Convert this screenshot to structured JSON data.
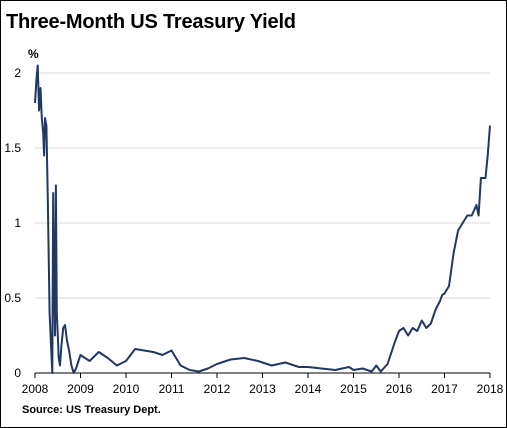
{
  "chart_data": {
    "type": "line",
    "title": "Three-Month US Treasury Yield",
    "ylabel": "%",
    "source": "Source: US Treasury Dept.",
    "x_ticks": [
      "2008",
      "2009",
      "2010",
      "2011",
      "2012",
      "2013",
      "2014",
      "2015",
      "2016",
      "2017",
      "2018"
    ],
    "y_ticks": [
      "0",
      "0.5",
      "1",
      "1.5",
      "2"
    ],
    "xlim": [
      2008.0,
      2018.0
    ],
    "ylim": [
      0,
      2.0
    ],
    "grid": "horizontal",
    "line_color": "#1f3864",
    "series": [
      {
        "x": [
          2008.0,
          2008.03,
          2008.06,
          2008.09,
          2008.12,
          2008.15,
          2008.18,
          2008.2,
          2008.22,
          2008.25,
          2008.28,
          2008.32,
          2008.35,
          2008.38,
          2008.4,
          2008.42,
          2008.44,
          2008.46,
          2008.48,
          2008.5,
          2008.52,
          2008.55,
          2008.58,
          2008.62,
          2008.66,
          2008.7,
          2008.75,
          2008.8,
          2008.85,
          2008.9,
          2009.0,
          2009.2,
          2009.4,
          2009.6,
          2009.8,
          2010.0,
          2010.2,
          2010.4,
          2010.6,
          2010.8,
          2011.0,
          2011.2,
          2011.4,
          2011.6,
          2011.8,
          2012.0,
          2012.3,
          2012.6,
          2012.9,
          2013.2,
          2013.5,
          2013.8,
          2014.0,
          2014.3,
          2014.6,
          2014.9,
          2015.0,
          2015.2,
          2015.4,
          2015.5,
          2015.6,
          2015.75,
          2015.9,
          2016.0,
          2016.1,
          2016.2,
          2016.3,
          2016.4,
          2016.5,
          2016.6,
          2016.7,
          2016.8,
          2016.9,
          2016.95,
          2017.0,
          2017.1,
          2017.2,
          2017.3,
          2017.4,
          2017.5,
          2017.6,
          2017.7,
          2017.75,
          2017.8,
          2017.9,
          2017.95,
          2018.0
        ],
        "y": [
          1.8,
          1.95,
          2.05,
          1.75,
          1.9,
          1.7,
          1.6,
          1.45,
          1.7,
          1.65,
          1.2,
          0.4,
          0.2,
          0.0,
          1.2,
          0.6,
          0.25,
          1.25,
          0.4,
          0.25,
          0.1,
          0.05,
          0.18,
          0.3,
          0.32,
          0.22,
          0.15,
          0.05,
          0.0,
          0.03,
          0.12,
          0.08,
          0.14,
          0.1,
          0.05,
          0.08,
          0.16,
          0.15,
          0.14,
          0.12,
          0.15,
          0.05,
          0.02,
          0.01,
          0.03,
          0.06,
          0.09,
          0.1,
          0.08,
          0.05,
          0.07,
          0.04,
          0.04,
          0.03,
          0.02,
          0.04,
          0.02,
          0.03,
          0.01,
          0.05,
          0.01,
          0.06,
          0.2,
          0.28,
          0.3,
          0.25,
          0.3,
          0.28,
          0.35,
          0.3,
          0.33,
          0.42,
          0.48,
          0.52,
          0.53,
          0.58,
          0.8,
          0.95,
          1.0,
          1.05,
          1.05,
          1.12,
          1.05,
          1.3,
          1.3,
          1.45,
          1.65
        ]
      }
    ]
  }
}
